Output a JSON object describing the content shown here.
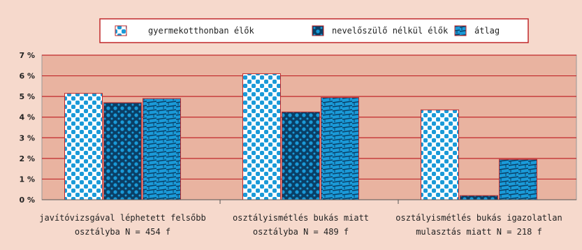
{
  "chart_data": {
    "type": "bar",
    "categories": [
      [
        "javítóvizsgával léphetett felsőbb",
        "osztályba N = 454 f"
      ],
      [
        "osztályismétlés bukás miatt",
        "osztályba N = 489 f"
      ],
      [
        "osztályismétlés bukás igazolatlan",
        "mulasztás miatt N = 218 f"
      ]
    ],
    "series": [
      {
        "name": "gyermekotthonban élők",
        "values": [
          5.15,
          6.1,
          4.35
        ],
        "pattern": "dots"
      },
      {
        "name": "nevelőszülő nélkül élők",
        "values": [
          4.7,
          4.25,
          0.2
        ],
        "pattern": "cross"
      },
      {
        "name": "átlag",
        "values": [
          4.9,
          4.95,
          1.95
        ],
        "pattern": "brick"
      }
    ],
    "yticks": [
      "0 %",
      "1 %",
      "2 %",
      "3 %",
      "4 %",
      "5 %",
      "6 %",
      "7 %"
    ],
    "ylim": [
      0,
      7
    ],
    "grid": true,
    "legend_position": "top",
    "colors": {
      "page_bg": "#f6d9cc",
      "plot_bg": "#e9b3a0",
      "grid": "#c0282b",
      "blue": "#1a9ad8",
      "dark_blue": "#0a3f66",
      "bar_outline": "#c0282b"
    }
  }
}
